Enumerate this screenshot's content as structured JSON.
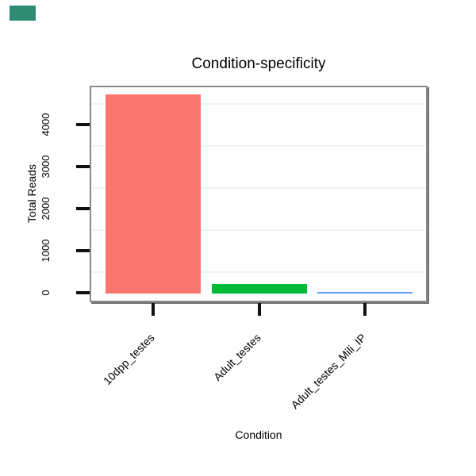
{
  "chart_data": {
    "type": "bar",
    "title": "Condition-specificity",
    "xlabel": "Condition",
    "ylabel": "Total Reads",
    "categories": [
      "10dpp_testes",
      "Adult_testes",
      "Adult_testes_Mili_IP"
    ],
    "values": [
      4700,
      230,
      30
    ],
    "bar_colors": [
      "#F8766D",
      "#00BA38",
      "#619CFF"
    ],
    "ylim": [
      0,
      4900
    ],
    "yticks": [
      0,
      1000,
      2000,
      3000,
      4000
    ],
    "ytick_labels": [
      "0",
      "1000",
      "2000",
      "3000",
      "4000"
    ],
    "minor_gridlines": [
      500,
      1500,
      2500,
      3500,
      4500
    ],
    "grid": "horizontal-minor-only",
    "legend": "none",
    "x_tick_label_rotation_deg": 45,
    "panel_border_color": "#898989",
    "gridline_color": "#f3f3f3",
    "tick_color": "#111111",
    "background_color": "#ffffff"
  },
  "decor": {
    "corner_marker_color": "#2E8B74"
  }
}
